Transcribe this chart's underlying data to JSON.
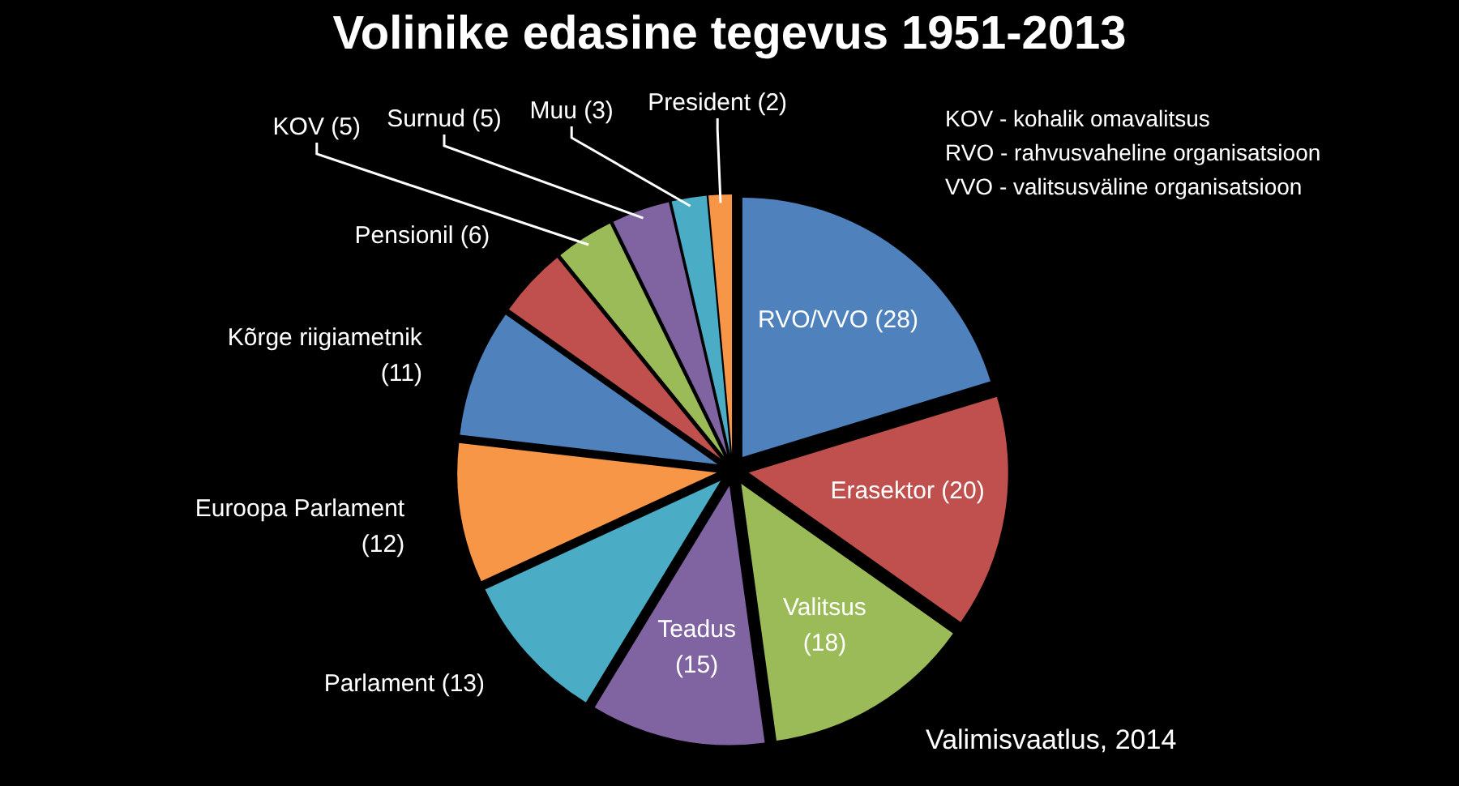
{
  "chart_data": {
    "type": "pie",
    "title": "Volinike edasine tegevus 1951-2013",
    "categories": [
      "RVO/VVO",
      "Erasektor",
      "Valitsus",
      "Teadus",
      "Parlament",
      "Euroopa Parlament",
      "Kõrge riigiametnik",
      "Pensionil",
      "KOV",
      "Surnud",
      "Muu",
      "President"
    ],
    "values": [
      28,
      20,
      18,
      15,
      13,
      12,
      11,
      6,
      5,
      5,
      3,
      2
    ],
    "colors": [
      "#4f81bd",
      "#c0504d",
      "#9bbb59",
      "#8064a2",
      "#4bacc6",
      "#f79646",
      "#4f81bd",
      "#c0504d",
      "#9bbb59",
      "#8064a2",
      "#4bacc6",
      "#f79646"
    ],
    "value_labels": [
      "(28)",
      "(20)",
      "(18)",
      "(15)",
      "(13)",
      "(12)",
      "(11)",
      "(6)",
      "(5)",
      "(5)",
      "(3)",
      "(2)"
    ],
    "annotations": [
      "KOV - kohalik omavalitsus",
      "RVO - rahvusvaheline organisatsioon",
      "VVO - valitsusväline organisatsioon",
      "Valimisvaatlus, 2014"
    ]
  }
}
